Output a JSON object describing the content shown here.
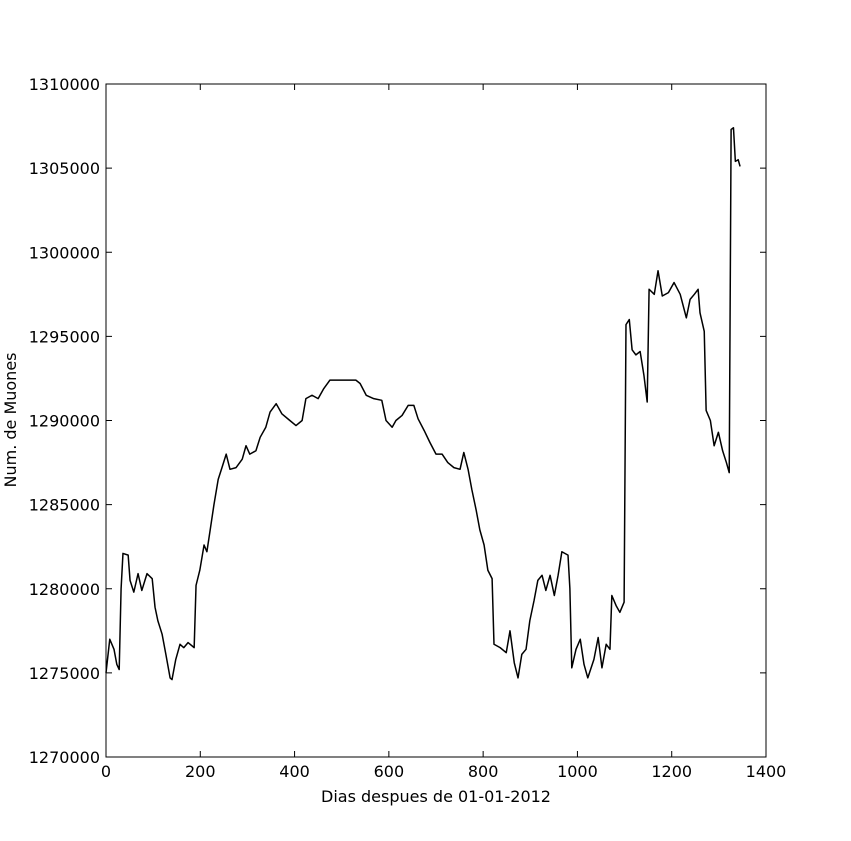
{
  "chart_data": {
    "type": "line",
    "x_label": "Dias despues de 01-01-2012",
    "y_label": "Num. de Muones",
    "xlim": [
      0,
      1400
    ],
    "xticks": [
      0,
      200,
      400,
      600,
      800,
      1000,
      1200,
      1400
    ],
    "ylim": [
      1270000,
      1310000
    ],
    "yticks": [
      1270000,
      1275000,
      1280000,
      1285000,
      1290000,
      1295000,
      1300000,
      1305000,
      1310000
    ],
    "grid": false,
    "series": [
      {
        "color": "#000000",
        "x": [
          0,
          8,
          17,
          23,
          28,
          32,
          36,
          47,
          51,
          59,
          68,
          76,
          87,
          98,
          104,
          110,
          119,
          127,
          136,
          140,
          148,
          157,
          165,
          174,
          187,
          191,
          199,
          208,
          214,
          221,
          229,
          238,
          246,
          255,
          263,
          276,
          289,
          297,
          305,
          318,
          327,
          339,
          348,
          361,
          373,
          390,
          403,
          416,
          424,
          437,
          450,
          462,
          475,
          496,
          530,
          539,
          552,
          568,
          585,
          594,
          607,
          615,
          628,
          641,
          653,
          662,
          675,
          687,
          700,
          713,
          725,
          738,
          751,
          759,
          768,
          776,
          785,
          793,
          802,
          810,
          819,
          823,
          836,
          849,
          857,
          866,
          874,
          882,
          891,
          899,
          908,
          916,
          925,
          933,
          942,
          951,
          959,
          967,
          980,
          984,
          988,
          997,
          1006,
          1014,
          1022,
          1035,
          1044,
          1052,
          1061,
          1069,
          1073,
          1082,
          1090,
          1099,
          1103,
          1110,
          1116,
          1124,
          1133,
          1141,
          1148,
          1152,
          1163,
          1171,
          1180,
          1193,
          1205,
          1218,
          1231,
          1239,
          1248,
          1256,
          1260,
          1269,
          1273,
          1282,
          1290,
          1299,
          1308,
          1316,
          1322,
          1326,
          1331,
          1335,
          1341,
          1345
        ],
        "values": [
          1275000,
          1277000,
          1276400,
          1275500,
          1275200,
          1280000,
          1282100,
          1282000,
          1280500,
          1279800,
          1280900,
          1279900,
          1280900,
          1280600,
          1278900,
          1278100,
          1277300,
          1276100,
          1274700,
          1274600,
          1275800,
          1276700,
          1276500,
          1276800,
          1276500,
          1280200,
          1281100,
          1282600,
          1282200,
          1283500,
          1285000,
          1286500,
          1287200,
          1288000,
          1287100,
          1287200,
          1287700,
          1288500,
          1288000,
          1288200,
          1289000,
          1289600,
          1290500,
          1291000,
          1290400,
          1290000,
          1289700,
          1290000,
          1291300,
          1291500,
          1291300,
          1291900,
          1292400,
          1292400,
          1292400,
          1292200,
          1291500,
          1291300,
          1291200,
          1290000,
          1289600,
          1290000,
          1290300,
          1290900,
          1290900,
          1290100,
          1289400,
          1288700,
          1288000,
          1288000,
          1287500,
          1287200,
          1287100,
          1288100,
          1287100,
          1285900,
          1284700,
          1283500,
          1282600,
          1281100,
          1280600,
          1276700,
          1276500,
          1276200,
          1277500,
          1275600,
          1274700,
          1276100,
          1276400,
          1278100,
          1279300,
          1280500,
          1280800,
          1279900,
          1280800,
          1279600,
          1280800,
          1282200,
          1282000,
          1280000,
          1275300,
          1276400,
          1277000,
          1275500,
          1274700,
          1275800,
          1277100,
          1275300,
          1276700,
          1276400,
          1279600,
          1279000,
          1278600,
          1279200,
          1295700,
          1296000,
          1294200,
          1293900,
          1294100,
          1292700,
          1291100,
          1297800,
          1297500,
          1298900,
          1297400,
          1297600,
          1298200,
          1297500,
          1296100,
          1297200,
          1297500,
          1297800,
          1296400,
          1295300,
          1290600,
          1290000,
          1288500,
          1289300,
          1288200,
          1287500,
          1286900,
          1307300,
          1307400,
          1305400,
          1305500,
          1305100
        ]
      }
    ]
  }
}
